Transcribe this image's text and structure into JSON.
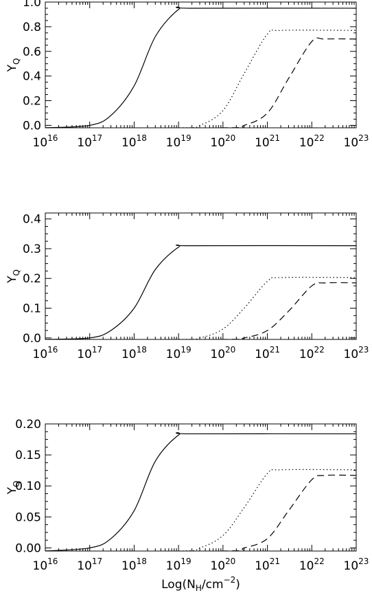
{
  "chart_data": [
    {
      "type": "line",
      "x_scale": "log",
      "xlim": [
        1e+16,
        1e+23
      ],
      "ylim": [
        -0.02,
        1.0
      ],
      "x_ticks": [
        {
          "base": "10",
          "exp": "16"
        },
        {
          "base": "10",
          "exp": "17"
        },
        {
          "base": "10",
          "exp": "18"
        },
        {
          "base": "10",
          "exp": "19"
        },
        {
          "base": "10",
          "exp": "20"
        },
        {
          "base": "10",
          "exp": "21"
        },
        {
          "base": "10",
          "exp": "22"
        },
        {
          "base": "10",
          "exp": "23"
        }
      ],
      "y_ticks": [
        "0.0",
        "0.2",
        "0.4",
        "0.6",
        "0.8",
        "1.0"
      ],
      "y_tick_values": [
        0.0,
        0.2,
        0.4,
        0.6,
        0.8,
        1.0
      ],
      "ylabel": {
        "main": "Y",
        "sub": "Q"
      },
      "xlabel": "",
      "grid": false,
      "series": [
        {
          "style": "solid",
          "x": [
            1e+16,
            1e+17,
            3e+17,
            1e+18,
            3e+18,
            1e+19,
            2e+19,
            1e+23
          ],
          "y": [
            -0.02,
            0.0,
            0.08,
            0.32,
            0.72,
            0.94,
            0.95,
            0.95
          ]
        },
        {
          "style": "dotted",
          "x": [
            1e+16,
            1e+19,
            3e+19,
            1e+20,
            3e+20,
            1e+21,
            2e+21,
            1e+23
          ],
          "y": [
            -0.02,
            -0.02,
            0.0,
            0.12,
            0.42,
            0.74,
            0.77,
            0.77
          ]
        },
        {
          "style": "dashed",
          "x": [
            1e+16,
            1e+20,
            3e+20,
            1e+21,
            3e+21,
            1e+22,
            2e+22,
            1e+23
          ],
          "y": [
            -0.02,
            -0.02,
            0.0,
            0.1,
            0.38,
            0.68,
            0.7,
            0.7
          ]
        }
      ]
    },
    {
      "type": "line",
      "x_scale": "log",
      "xlim": [
        1e+16,
        1e+23
      ],
      "ylim": [
        -0.005,
        0.42
      ],
      "x_ticks": [
        {
          "base": "10",
          "exp": "16"
        },
        {
          "base": "10",
          "exp": "17"
        },
        {
          "base": "10",
          "exp": "18"
        },
        {
          "base": "10",
          "exp": "19"
        },
        {
          "base": "10",
          "exp": "20"
        },
        {
          "base": "10",
          "exp": "21"
        },
        {
          "base": "10",
          "exp": "22"
        },
        {
          "base": "10",
          "exp": "23"
        }
      ],
      "y_ticks": [
        "0.0",
        "0.1",
        "0.2",
        "0.3",
        "0.4"
      ],
      "y_tick_values": [
        0.0,
        0.1,
        0.2,
        0.3,
        0.4
      ],
      "ylabel": {
        "main": "Y",
        "sub": "Q"
      },
      "xlabel": "",
      "grid": false,
      "series": [
        {
          "style": "solid",
          "x": [
            1e+16,
            1e+17,
            3e+17,
            1e+18,
            3e+18,
            1e+19,
            2e+19,
            1e+23
          ],
          "y": [
            -0.005,
            0.0,
            0.025,
            0.1,
            0.23,
            0.305,
            0.31,
            0.31
          ]
        },
        {
          "style": "dotted",
          "x": [
            1e+16,
            1e+19,
            3e+19,
            1e+20,
            3e+20,
            1e+21,
            2e+21,
            1e+23
          ],
          "y": [
            -0.005,
            -0.005,
            0.0,
            0.03,
            0.1,
            0.19,
            0.203,
            0.203
          ]
        },
        {
          "style": "dashed",
          "x": [
            1e+16,
            1e+20,
            3e+20,
            1e+21,
            3e+21,
            1e+22,
            2e+22,
            1e+23
          ],
          "y": [
            -0.005,
            -0.005,
            0.0,
            0.025,
            0.09,
            0.175,
            0.185,
            0.185
          ]
        }
      ]
    },
    {
      "type": "line",
      "x_scale": "log",
      "xlim": [
        1e+16,
        1e+23
      ],
      "ylim": [
        -0.005,
        0.2
      ],
      "x_ticks": [
        {
          "base": "10",
          "exp": "16"
        },
        {
          "base": "10",
          "exp": "17"
        },
        {
          "base": "10",
          "exp": "18"
        },
        {
          "base": "10",
          "exp": "19"
        },
        {
          "base": "10",
          "exp": "20"
        },
        {
          "base": "10",
          "exp": "21"
        },
        {
          "base": "10",
          "exp": "22"
        },
        {
          "base": "10",
          "exp": "23"
        }
      ],
      "y_ticks": [
        "0.00",
        "0.05",
        "0.10",
        "0.15",
        "0.20"
      ],
      "y_tick_values": [
        0.0,
        0.05,
        0.1,
        0.15,
        0.2
      ],
      "ylabel": {
        "main": "Y",
        "sub": "Q"
      },
      "xlabel": {
        "pre": "Log(N",
        "sub": "H",
        "mid": "/cm",
        "sup": "−2",
        "post": ")"
      },
      "grid": false,
      "series": [
        {
          "style": "solid",
          "x": [
            1e+16,
            1e+17,
            3e+17,
            1e+18,
            3e+18,
            1e+19,
            2e+19,
            1e+23
          ],
          "y": [
            -0.005,
            0.0,
            0.015,
            0.06,
            0.14,
            0.182,
            0.184,
            0.184
          ]
        },
        {
          "style": "dotted",
          "x": [
            1e+16,
            1e+19,
            3e+19,
            1e+20,
            3e+20,
            1e+21,
            2e+21,
            1e+23
          ],
          "y": [
            -0.005,
            -0.005,
            0.0,
            0.02,
            0.065,
            0.12,
            0.126,
            0.126
          ]
        },
        {
          "style": "dashed",
          "x": [
            1e+16,
            1e+20,
            3e+20,
            1e+21,
            3e+21,
            1e+22,
            2e+22,
            1e+23
          ],
          "y": [
            -0.005,
            -0.005,
            0.0,
            0.015,
            0.06,
            0.11,
            0.117,
            0.117
          ]
        }
      ]
    }
  ]
}
